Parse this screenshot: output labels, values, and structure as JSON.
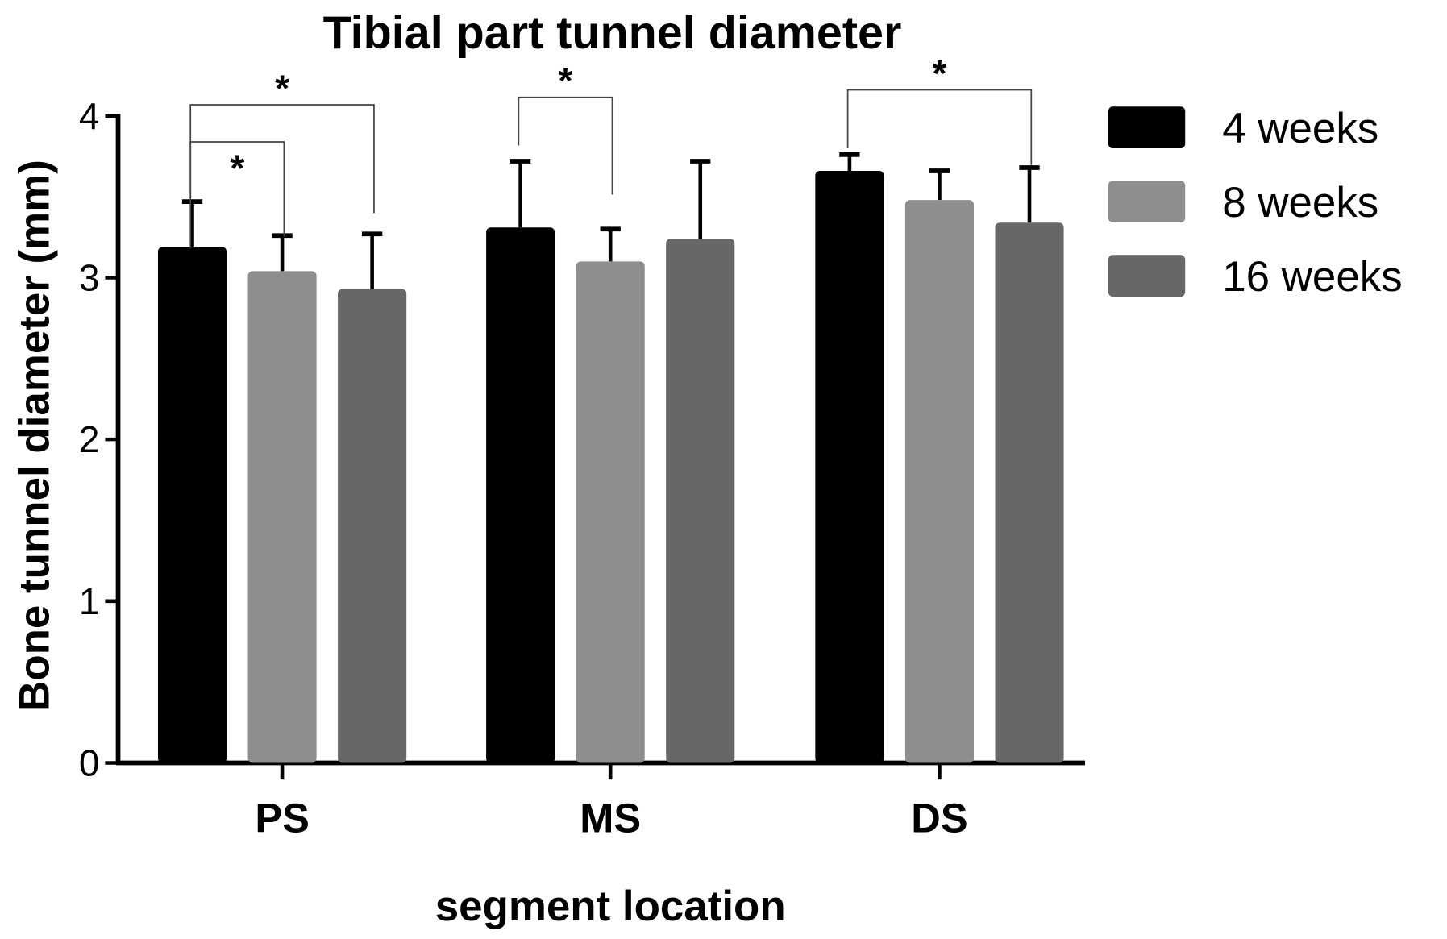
{
  "chart_data": {
    "type": "bar",
    "title": "Tibial part tunnel diameter",
    "xlabel": "segment location",
    "ylabel": "Bone tunnel diameter (mm)",
    "ylim": [
      0,
      4
    ],
    "yticks": [
      "0",
      "1",
      "2",
      "3",
      "4"
    ],
    "categories": [
      "PS",
      "MS",
      "DS"
    ],
    "legend_position": "right",
    "series": [
      {
        "name": "4 weeks",
        "color": "#000000",
        "values": [
          3.19,
          3.31,
          3.66
        ],
        "error": [
          0.28,
          0.41,
          0.1
        ]
      },
      {
        "name": "8 weeks",
        "color": "#8e8e8e",
        "values": [
          3.04,
          3.1,
          3.48
        ],
        "error": [
          0.22,
          0.2,
          0.18
        ]
      },
      {
        "name": "16 weeks",
        "color": "#676767",
        "values": [
          2.93,
          3.24,
          3.34
        ],
        "error": [
          0.34,
          0.48,
          0.34
        ]
      }
    ],
    "significance": [
      {
        "category": "PS",
        "from": "4 weeks",
        "to": "16 weeks",
        "label": "*"
      },
      {
        "category": "PS",
        "from": "4 weeks",
        "to": "8 weeks",
        "label": "*"
      },
      {
        "category": "MS",
        "from": "4 weeks",
        "to": "8 weeks",
        "label": "*"
      },
      {
        "category": "DS",
        "from": "4 weeks",
        "to": "16 weeks",
        "label": "*"
      }
    ]
  }
}
